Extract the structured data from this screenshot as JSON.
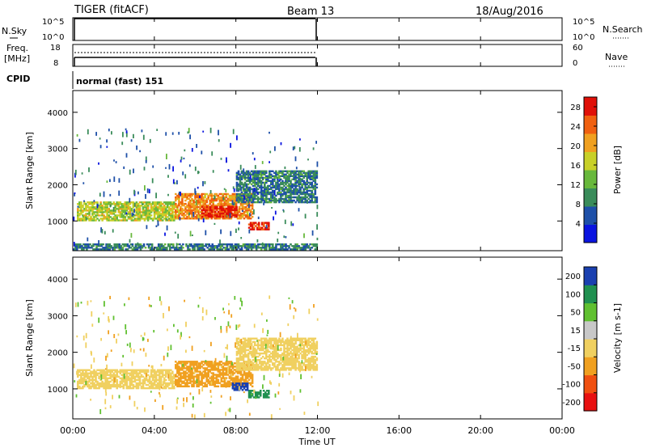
{
  "header": {
    "title": "TIGER (fitACF)",
    "beam": "Beam 13",
    "date": "18/Aug/2016"
  },
  "nsky_panel": {
    "left_label": "N.Sky",
    "right_label": "N.Search",
    "ticks": [
      "10^5",
      "10^0"
    ]
  },
  "freq_panel": {
    "left_label_1": "Freq.",
    "left_label_2": "[MHz]",
    "left_ticks": [
      "18",
      "8"
    ],
    "right_label": "Nave",
    "right_ticks": [
      "60",
      "0"
    ]
  },
  "cpid": {
    "label": "CPID",
    "value": "normal (fast) 151"
  },
  "colors": {
    "power": [
      "#0a14e0",
      "#1e50a8",
      "#3a8c5a",
      "#68b83c",
      "#c8d028",
      "#f0a020",
      "#f06010",
      "#e01008"
    ],
    "velocity": [
      "#e81010",
      "#f05010",
      "#f0a020",
      "#f0d060",
      "#c8c8c8",
      "#60c030",
      "#209050",
      "#1a40b0"
    ]
  },
  "chart_data": [
    {
      "type": "heatmap",
      "name": "power",
      "xlabel": "",
      "ylabel": "Slant Range [km]",
      "xlim": [
        "00:00",
        "24:00"
      ],
      "ylim": [
        180,
        4600
      ],
      "yticks": [
        "1000",
        "2000",
        "3000",
        "4000"
      ],
      "colorbar": {
        "label": "Power [dB]",
        "ticks": [
          "4",
          "8",
          "12",
          "16",
          "20",
          "24",
          "28"
        ],
        "range": [
          0,
          30
        ]
      },
      "data_extent": [
        "00:00",
        "12:00"
      ],
      "regions": [
        {
          "t0": 0.2,
          "t1": 5.0,
          "r0": 1000,
          "r1": 1500,
          "level": 16
        },
        {
          "t0": 5.0,
          "t1": 8.8,
          "r0": 1050,
          "r1": 1750,
          "level": 22
        },
        {
          "t0": 6.3,
          "t1": 8.0,
          "r0": 1100,
          "r1": 1400,
          "level": 28
        },
        {
          "t0": 8.0,
          "t1": 12.0,
          "r0": 1500,
          "r1": 2400,
          "level": 8
        },
        {
          "t0": 8.6,
          "t1": 9.6,
          "r0": 750,
          "r1": 950,
          "level": 28
        },
        {
          "t0": 0.0,
          "t1": 12.0,
          "r0": 200,
          "r1": 350,
          "level": 8
        }
      ]
    },
    {
      "type": "heatmap",
      "name": "velocity",
      "xlabel": "Time UT",
      "ylabel": "Slant Range [km]",
      "xlim": [
        "00:00",
        "24:00"
      ],
      "ylim": [
        180,
        4600
      ],
      "xticks": [
        "00:00",
        "04:00",
        "08:00",
        "12:00",
        "16:00",
        "20:00",
        "00:00"
      ],
      "yticks": [
        "1000",
        "2000",
        "3000",
        "4000"
      ],
      "colorbar": {
        "label": "Velocity [m s-1]",
        "ticks": [
          "200",
          "100",
          "50",
          "15",
          "-15",
          "-50",
          "-100",
          "-200"
        ]
      },
      "data_extent": [
        "00:00",
        "12:00"
      ],
      "regions": [
        {
          "t0": 0.2,
          "t1": 5.0,
          "r0": 1000,
          "r1": 1500,
          "level": 0
        },
        {
          "t0": 5.0,
          "t1": 8.8,
          "r0": 1050,
          "r1": 1750,
          "level": -30
        },
        {
          "t0": 8.0,
          "t1": 12.0,
          "r0": 1500,
          "r1": 2400,
          "level": 0
        },
        {
          "t0": 8.6,
          "t1": 9.6,
          "r0": 750,
          "r1": 950,
          "level": 60
        },
        {
          "t0": 7.8,
          "t1": 8.6,
          "r0": 950,
          "r1": 1150,
          "level": 200
        }
      ]
    }
  ],
  "xaxis_label": "Time UT"
}
